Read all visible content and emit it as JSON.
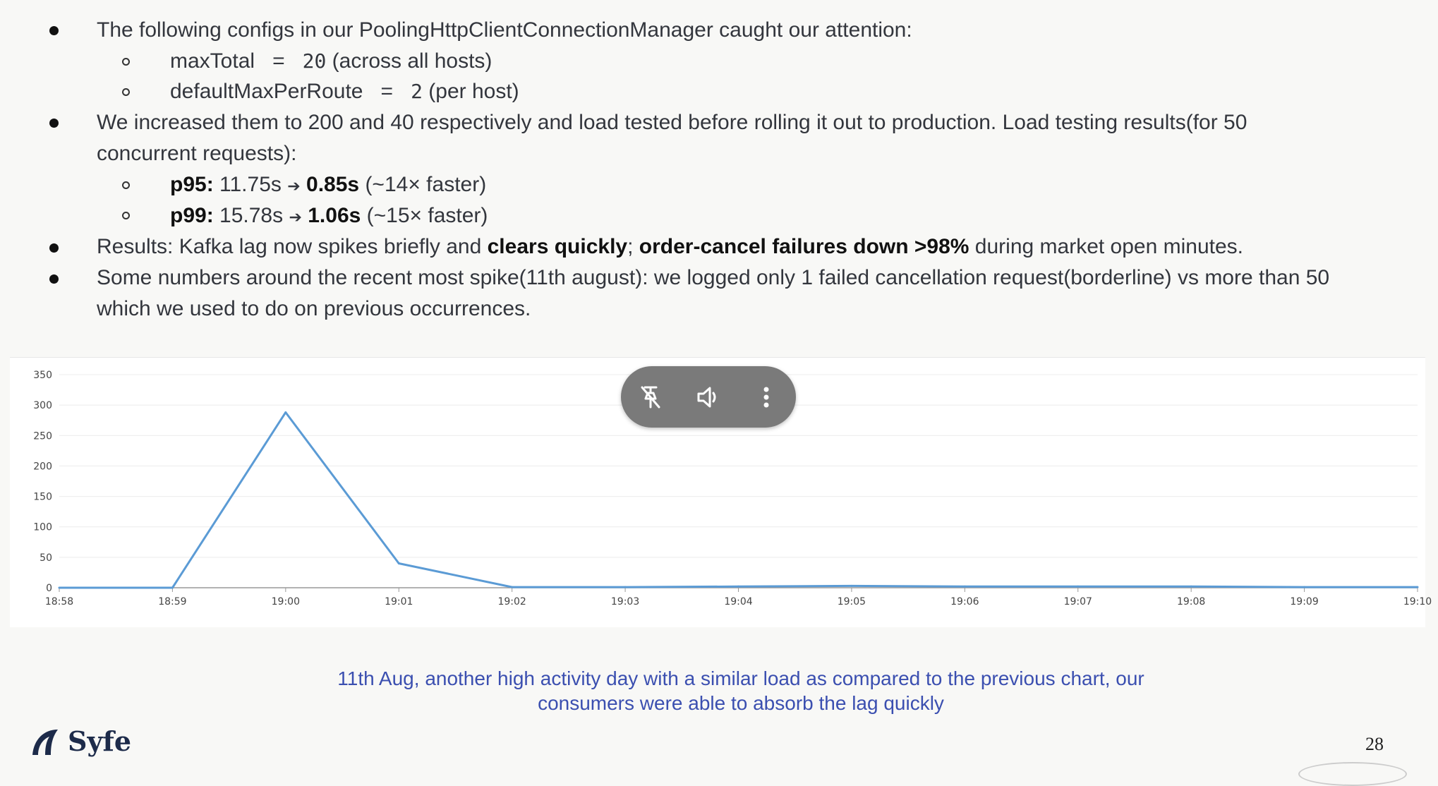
{
  "bullets": {
    "b1": {
      "text": "The following configs in our PoolingHttpClientConnectionManager caught our attention:"
    },
    "s1": {
      "name": "maxTotal",
      "eq": "=",
      "value": "20",
      "note": "(across all hosts)"
    },
    "s2": {
      "name": "defaultMaxPerRoute",
      "eq": "=",
      "value": "2",
      "note": "(per host)"
    },
    "b2": {
      "line1": "We increased them to 200 and 40 respectively and load tested before rolling it out to production. Load testing results(for 50",
      "line2": "concurrent requests):"
    },
    "s3": {
      "label": "p95:",
      "from": "11.75s",
      "arrow": "➔",
      "to": "0.85s",
      "note": "(~14× faster)"
    },
    "s4": {
      "label": "p99:",
      "from": "15.78s",
      "arrow": "➔",
      "to": "1.06s",
      "note": "(~15× faster)"
    },
    "b3": {
      "pre": "Results: Kafka lag now spikes briefly and",
      "bold1": "clears quickly",
      "sep": ";",
      "bold2": "order-cancel failures down >98%",
      "post": "during market open minutes."
    },
    "b4": {
      "line1": "Some numbers around the recent most spike(11th august): we logged only 1 failed cancellation request(borderline) vs more than 50",
      "line2": "which we used to do on previous occurrences."
    }
  },
  "chart_data": {
    "type": "line",
    "x": [
      "18:58",
      "18:59",
      "19:00",
      "19:01",
      "19:02",
      "19:03",
      "19:04",
      "19:05",
      "19:06",
      "19:07",
      "19:08",
      "19:09",
      "19:10"
    ],
    "series": [
      {
        "values": [
          0,
          0,
          288,
          40,
          1,
          1,
          2,
          3,
          2,
          2,
          2,
          1,
          1
        ]
      }
    ],
    "yticks": [
      0,
      50,
      100,
      150,
      200,
      250,
      300,
      350
    ],
    "ylim": [
      0,
      350
    ],
    "grid": true,
    "line_color": "#5b9bd5"
  },
  "video_controls": {
    "icons": [
      "unpin-icon",
      "volume-icon",
      "more-options-icon"
    ]
  },
  "caption": {
    "line1": "11th Aug, another high activity day with a similar load as compared to the previous chart, our",
    "line2": "consumers were able to absorb the lag quickly"
  },
  "footer": {
    "logo_text": "Syfe",
    "page_number": "28"
  }
}
